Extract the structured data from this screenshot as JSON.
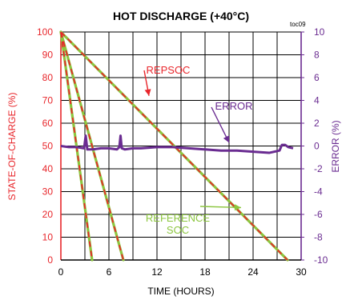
{
  "chart_data": {
    "type": "line",
    "title": "HOT DISCHARGE (+40°C)",
    "tag": "toc09",
    "xlabel": "TIME (HOURS)",
    "ylabel": "STATE-OF-CHARGE (%)",
    "y2label": "ERROR (%)",
    "xlim": [
      0,
      30
    ],
    "ylim": [
      0,
      100
    ],
    "y2lim": [
      -10,
      10
    ],
    "x_ticks": [
      0,
      6,
      12,
      18,
      24,
      30
    ],
    "y_ticks": [
      0,
      10,
      20,
      30,
      40,
      50,
      60,
      70,
      80,
      90,
      100
    ],
    "y2_ticks": [
      -10,
      -8,
      -6,
      -4,
      -2,
      0,
      2,
      4,
      6,
      8,
      10
    ],
    "grid": true,
    "colors": {
      "repsoc": "#e8262b",
      "reference": "#8cc63f",
      "error": "#6a2c91",
      "left_axis": "#e8262b",
      "right_axis": "#6a2c91",
      "grid": "#000000"
    },
    "series": [
      {
        "name": "REPSOC",
        "color": "#e8262b",
        "dashed": true,
        "curves": [
          [
            [
              0,
              100
            ],
            [
              3.9,
              0
            ]
          ],
          [
            [
              0,
              100
            ],
            [
              7.8,
              0
            ]
          ],
          [
            [
              0,
              100
            ],
            [
              28.3,
              0
            ]
          ]
        ]
      },
      {
        "name": "REFERENCE SOC",
        "color": "#8cc63f",
        "curves": [
          [
            [
              0,
              100
            ],
            [
              3.9,
              0
            ]
          ],
          [
            [
              0,
              100
            ],
            [
              7.8,
              0
            ]
          ],
          [
            [
              0,
              100
            ],
            [
              28.3,
              0
            ]
          ]
        ]
      },
      {
        "name": "ERROR",
        "color": "#6a2c91",
        "axis": "right",
        "points": [
          [
            0,
            0.0
          ],
          [
            1,
            -0.1
          ],
          [
            2,
            -0.1
          ],
          [
            2.9,
            -0.2
          ],
          [
            3.1,
            0.9
          ],
          [
            3.3,
            -0.3
          ],
          [
            4,
            -0.3
          ],
          [
            5,
            -0.2
          ],
          [
            6,
            -0.2
          ],
          [
            7,
            -0.3
          ],
          [
            7.3,
            -0.1
          ],
          [
            7.45,
            0.9
          ],
          [
            7.6,
            -0.2
          ],
          [
            8,
            -0.3
          ],
          [
            9,
            -0.2
          ],
          [
            10,
            -0.2
          ],
          [
            12,
            -0.1
          ],
          [
            14,
            -0.1
          ],
          [
            16,
            -0.2
          ],
          [
            18,
            -0.3
          ],
          [
            20,
            -0.4
          ],
          [
            22,
            -0.4
          ],
          [
            24,
            -0.5
          ],
          [
            26,
            -0.6
          ],
          [
            27.3,
            -0.4
          ],
          [
            27.6,
            0.1
          ],
          [
            28.0,
            0.1
          ],
          [
            28.4,
            -0.1
          ],
          [
            29,
            -0.2
          ]
        ]
      }
    ],
    "annotations": [
      {
        "text": [
          "REPSOC"
        ],
        "target": [
          11,
          72
        ],
        "color": "#e8262b",
        "axis": "left"
      },
      {
        "text": [
          "ERROR"
        ],
        "target": [
          21,
          0.3
        ],
        "color": "#6a2c91",
        "axis": "right"
      },
      {
        "text": [
          "REFERENCE",
          "SOC"
        ],
        "target": [
          22.5,
          23
        ],
        "color": "#8cc63f",
        "axis": "left"
      }
    ]
  }
}
